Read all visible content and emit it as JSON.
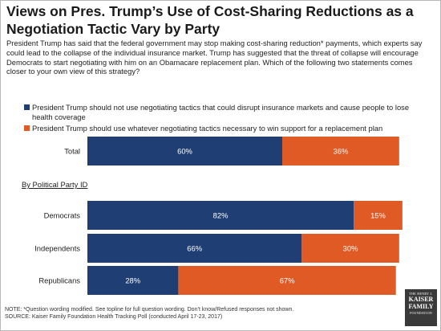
{
  "title": "Views on Pres. Trump’s Use of Cost-Sharing Reductions as a Negotiation Tactic Vary by Party",
  "intro": "President Trump has said that the federal government may stop making cost-sharing reduction* payments, which experts say could lead to the collapse of the individual insurance market. Trump has suggested that the threat of collapse will encourage Democrats to start negotiating with him on an Obamacare replacement plan. Which of the following two statements comes closer to your own view of this strategy?",
  "section_label": "By Political Party ID",
  "footer": {
    "note": "NOTE: *Question wording modified. See topline for full question wording. Don’t know/Refused responses not shown.",
    "source": "SOURCE: Kaiser Family Foundation Health Tracking Poll (conducted April 17-23, 2017)"
  },
  "logo": {
    "line1": "THE HENRY J.",
    "line2": "KAISER",
    "line3": "FAMILY",
    "line4": "FOUNDATION"
  },
  "colors": {
    "series1": "#1f3f74",
    "series2": "#e05a26"
  },
  "chart_data": {
    "type": "bar",
    "orientation": "horizontal",
    "stacked": true,
    "categories": [
      "Total",
      "Democrats",
      "Independents",
      "Republicans"
    ],
    "series": [
      {
        "name": "President Trump should not use negotiating tactics that could disrupt insurance markets and cause people to lose health coverage",
        "values": [
          60,
          82,
          66,
          28
        ],
        "labels": [
          "60%",
          "82%",
          "66%",
          "28%"
        ]
      },
      {
        "name": "President Trump should use whatever negotiating tactics necessary to win support for a replacement plan",
        "values": [
          36,
          15,
          30,
          67
        ],
        "labels": [
          "36%",
          "15%",
          "30%",
          "67%"
        ]
      }
    ],
    "xlim": [
      0,
      100
    ],
    "legend_position": "top-left",
    "grid": false
  }
}
